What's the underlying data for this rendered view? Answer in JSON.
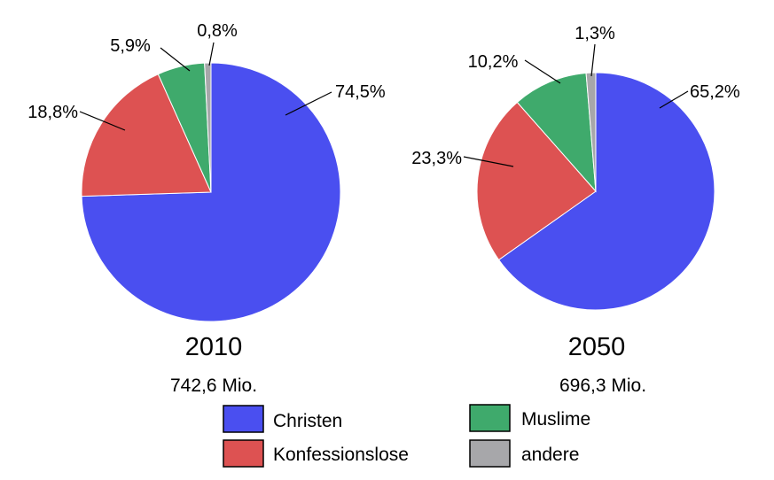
{
  "chart_data": [
    {
      "type": "pie",
      "title": "2010",
      "subtitle": "742,6 Mio.",
      "categories": [
        "Christen",
        "Konfessionslose",
        "Muslime",
        "andere"
      ],
      "values": [
        74.5,
        18.8,
        5.9,
        0.8
      ],
      "labels": [
        "74,5%",
        "18,8%",
        "5,9%",
        "0,8%"
      ],
      "start": "top",
      "direction": "clockwise"
    },
    {
      "type": "pie",
      "title": "2050",
      "subtitle": "696,3 Mio.",
      "categories": [
        "Christen",
        "Konfessionslose",
        "Muslime",
        "andere"
      ],
      "values": [
        65.2,
        23.3,
        10.2,
        1.3
      ],
      "labels": [
        "65,2%",
        "23,3%",
        "10,2%",
        "1,3%"
      ],
      "start": "top",
      "direction": "clockwise"
    }
  ],
  "legend": {
    "placement": "bottom",
    "items": [
      {
        "label": "Christen",
        "color": "#4a4ff0"
      },
      {
        "label": "Muslime",
        "color": "#3faa6c"
      },
      {
        "label": "Konfessionslose",
        "color": "#dd5252"
      },
      {
        "label": "andere",
        "color": "#a7a7aa"
      }
    ]
  },
  "colors": {
    "Christen": "#4a4ff0",
    "Konfessionslose": "#dd5252",
    "Muslime": "#3faa6c",
    "andere": "#a7a7aa"
  }
}
